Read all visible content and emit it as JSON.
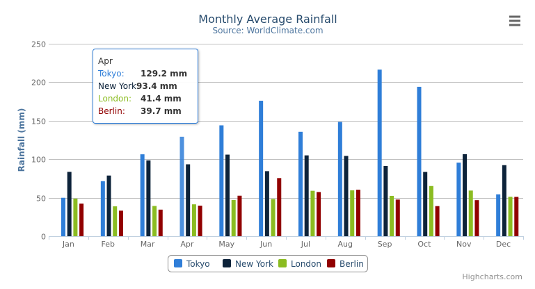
{
  "chart_data": {
    "type": "bar",
    "title": "Monthly Average Rainfall",
    "subtitle": "Source: WorldClimate.com",
    "ylabel": "Rainfall (mm)",
    "xlabel": "",
    "ylim": [
      0,
      250
    ],
    "yticks": [
      "0",
      "50",
      "100",
      "150",
      "200",
      "250"
    ],
    "categories": [
      "Jan",
      "Feb",
      "Mar",
      "Apr",
      "May",
      "Jun",
      "Jul",
      "Aug",
      "Sep",
      "Oct",
      "Nov",
      "Dec"
    ],
    "grid": true,
    "legend": "bottom-center",
    "series": [
      {
        "name": "Tokyo",
        "color": "#2f7ed8",
        "values": [
          49.9,
          71.5,
          106.4,
          129.2,
          144.0,
          176.0,
          135.6,
          148.5,
          216.4,
          194.1,
          95.6,
          54.4
        ]
      },
      {
        "name": "New York",
        "color": "#0d233a",
        "values": [
          83.6,
          78.8,
          98.5,
          93.4,
          106.0,
          84.5,
          105.0,
          104.3,
          91.2,
          83.5,
          106.6,
          92.3
        ]
      },
      {
        "name": "London",
        "color": "#8bbc21",
        "values": [
          48.9,
          38.8,
          39.3,
          41.4,
          47.0,
          48.3,
          59.0,
          59.6,
          52.4,
          65.2,
          59.3,
          51.2
        ]
      },
      {
        "name": "Berlin",
        "color": "#910000",
        "values": [
          42.4,
          33.2,
          34.5,
          39.7,
          52.6,
          75.5,
          57.4,
          60.4,
          47.6,
          39.1,
          46.8,
          51.1
        ]
      }
    ]
  },
  "tooltip": {
    "title": "Apr",
    "rows": [
      {
        "label": "Tokyo:",
        "value": "129.2 mm",
        "color": "#2f7ed8"
      },
      {
        "label": "New York:",
        "value": "93.4 mm",
        "color": "#0d233a"
      },
      {
        "label": "London:",
        "value": "41.4 mm",
        "color": "#8bbc21"
      },
      {
        "label": "Berlin:",
        "value": "39.7 mm",
        "color": "#910000"
      }
    ]
  },
  "credits": "Highcharts.com",
  "menu_icon": "hamburger-menu-icon"
}
